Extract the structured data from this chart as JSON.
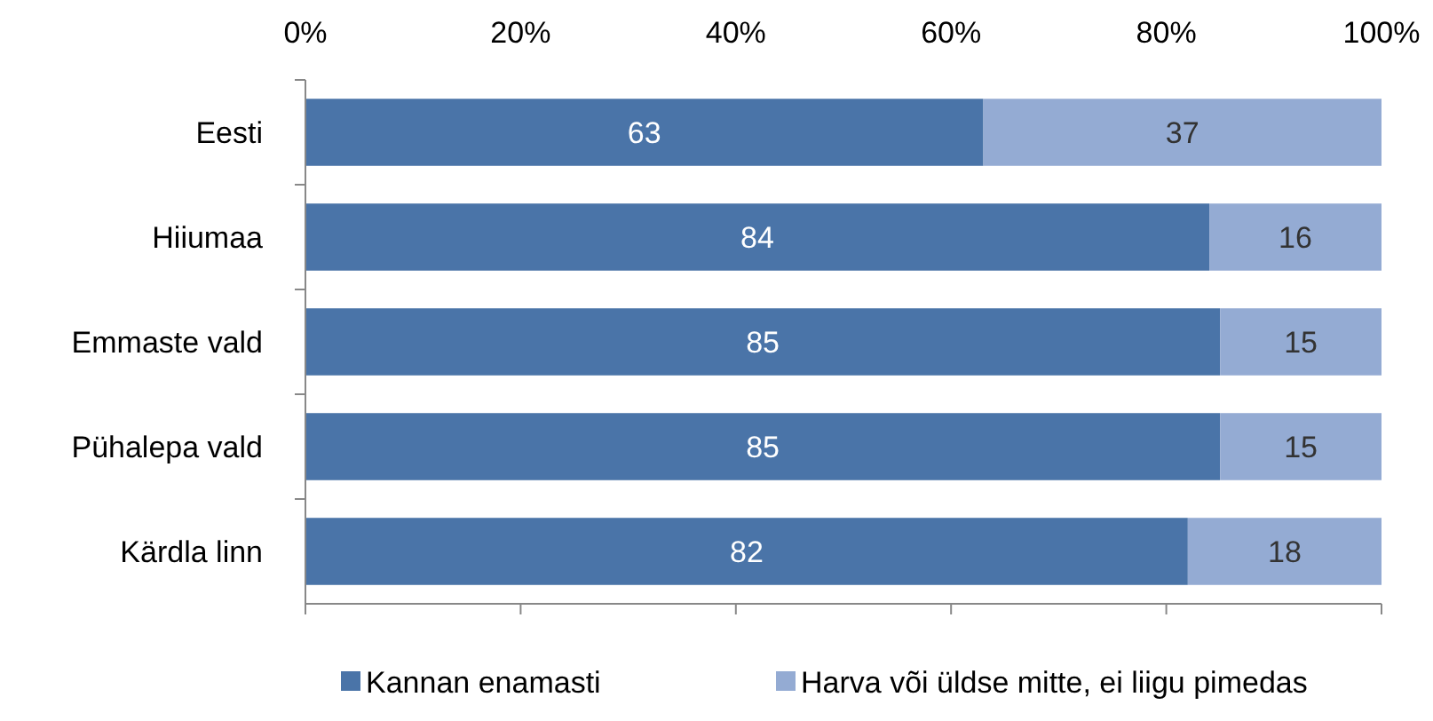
{
  "chart_data": {
    "type": "bar",
    "orientation": "horizontal",
    "stacked": true,
    "categories": [
      "Eesti",
      "Hiiumaa",
      "Emmaste vald",
      "Pühalepa vald",
      "Kärdla linn"
    ],
    "series": [
      {
        "name": "Kannan enamasti",
        "color": "#4a74a8",
        "values": [
          63,
          84,
          85,
          85,
          82
        ]
      },
      {
        "name": "Harva või üldse mitte, ei liigu pimedas",
        "color": "#94abd3",
        "values": [
          37,
          16,
          15,
          15,
          18
        ]
      }
    ],
    "xlim": [
      0,
      100
    ],
    "xticks": [
      {
        "value": 0,
        "label": "0%"
      },
      {
        "value": 20,
        "label": "20%"
      },
      {
        "value": 40,
        "label": "40%"
      },
      {
        "value": 60,
        "label": "60%"
      },
      {
        "value": 80,
        "label": "80%"
      },
      {
        "value": 100,
        "label": "100%"
      }
    ],
    "data_labels": true,
    "legend": "bottom",
    "grid": false
  }
}
